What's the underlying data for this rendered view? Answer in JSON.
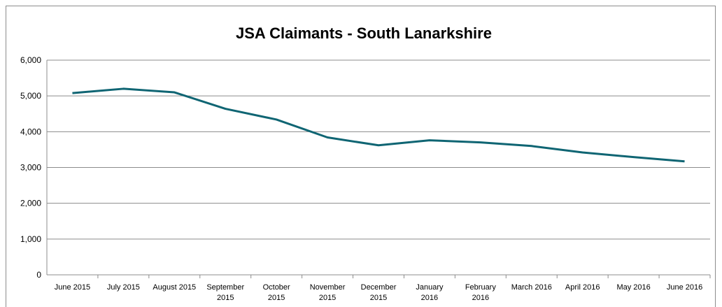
{
  "chart_data": {
    "type": "line",
    "title": "JSA Claimants - South Lanarkshire",
    "categories": [
      "June 2015",
      "July 2015",
      "August 2015",
      "September 2015",
      "October 2015",
      "November 2015",
      "December 2015",
      "January 2016",
      "February 2016",
      "March 2016",
      "April 2016",
      "May 2016",
      "June 2016"
    ],
    "values": [
      5080,
      5200,
      5100,
      4640,
      4340,
      3840,
      3620,
      3760,
      3700,
      3600,
      3420,
      3290,
      3170
    ],
    "color": "#0f6573",
    "ylim": [
      0,
      6000
    ],
    "yticks": [
      0,
      {
        "value": 1000,
        "label": "1,000"
      },
      {
        "value": 2000,
        "label": "2,000"
      },
      {
        "value": 3000,
        "label": "3,000"
      },
      {
        "value": 4000,
        "label": "4,000"
      },
      {
        "value": 5000,
        "label": "5,000"
      },
      {
        "value": 6000,
        "label": "6,000"
      }
    ],
    "grid": true
  }
}
